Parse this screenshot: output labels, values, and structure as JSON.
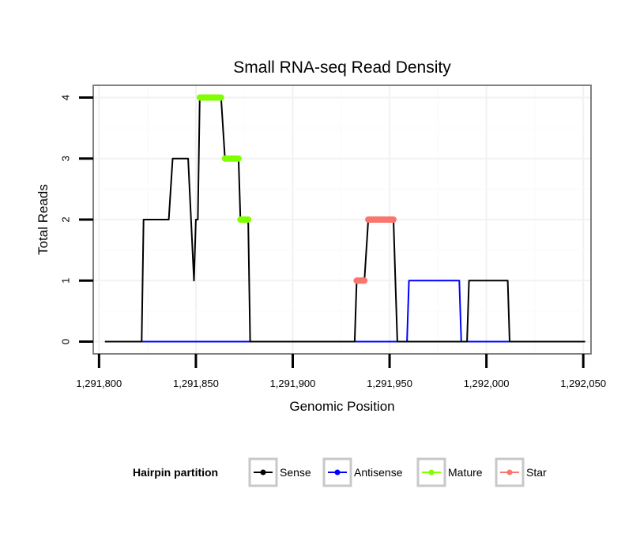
{
  "chart_data": {
    "type": "line",
    "title": "Small RNA-seq Read Density",
    "xlabel": "Genomic Position",
    "ylabel": "Total Reads",
    "xlim": [
      1291797,
      1292054
    ],
    "ylim": [
      -0.2,
      4.2
    ],
    "x_ticks": [
      1291800,
      1291850,
      1291900,
      1291950,
      1292000,
      1292050
    ],
    "x_tick_labels": [
      "1,291,800",
      "1,291,850",
      "1,291,900",
      "1,291,950",
      "1,292,000",
      "1,292,050"
    ],
    "y_ticks": [
      0,
      1,
      2,
      3,
      4
    ],
    "y_tick_labels": [
      "0",
      "1",
      "2",
      "3",
      "4"
    ],
    "grid": true,
    "legend_position": "bottom",
    "legend_title": "Hairpin partition",
    "series": [
      {
        "name": "Sense",
        "color": "#000000",
        "points": [
          [
            1291803,
            0
          ],
          [
            1291822,
            0
          ],
          [
            1291823,
            2
          ],
          [
            1291836,
            2
          ],
          [
            1291838,
            3
          ],
          [
            1291846,
            3
          ],
          [
            1291849,
            1
          ],
          [
            1291850,
            2
          ],
          [
            1291851,
            2
          ],
          [
            1291852,
            4
          ],
          [
            1291863,
            4
          ],
          [
            1291865,
            3
          ],
          [
            1291872,
            3
          ],
          [
            1291873,
            2
          ],
          [
            1291877,
            2
          ],
          [
            1291878,
            0
          ],
          [
            1291932,
            0
          ],
          [
            1291933,
            1
          ],
          [
            1291937,
            1
          ],
          [
            1291939,
            2
          ],
          [
            1291952,
            2
          ],
          [
            1291953,
            1
          ],
          [
            1291954,
            0
          ],
          [
            1291990,
            0
          ],
          [
            1291991,
            1
          ],
          [
            1292011,
            1
          ],
          [
            1292012,
            0
          ],
          [
            1292051,
            0
          ]
        ]
      },
      {
        "name": "Antisense",
        "color": "#0000ff",
        "points": [
          [
            1291822,
            0
          ],
          [
            1291959,
            0
          ],
          [
            1291960,
            1
          ],
          [
            1291986,
            1
          ],
          [
            1291987,
            0
          ],
          [
            1292012,
            0
          ]
        ]
      },
      {
        "name": "Mature",
        "color": "#7fff00",
        "segments": [
          [
            [
              1291852,
              4
            ],
            [
              1291863,
              4
            ]
          ],
          [
            [
              1291865,
              3
            ],
            [
              1291872,
              3
            ]
          ],
          [
            [
              1291873,
              2
            ],
            [
              1291877,
              2
            ]
          ]
        ]
      },
      {
        "name": "Star",
        "color": "#f8766d",
        "segments": [
          [
            [
              1291933,
              1
            ],
            [
              1291937,
              1
            ]
          ],
          [
            [
              1291939,
              2
            ],
            [
              1291952,
              2
            ]
          ]
        ]
      }
    ]
  }
}
